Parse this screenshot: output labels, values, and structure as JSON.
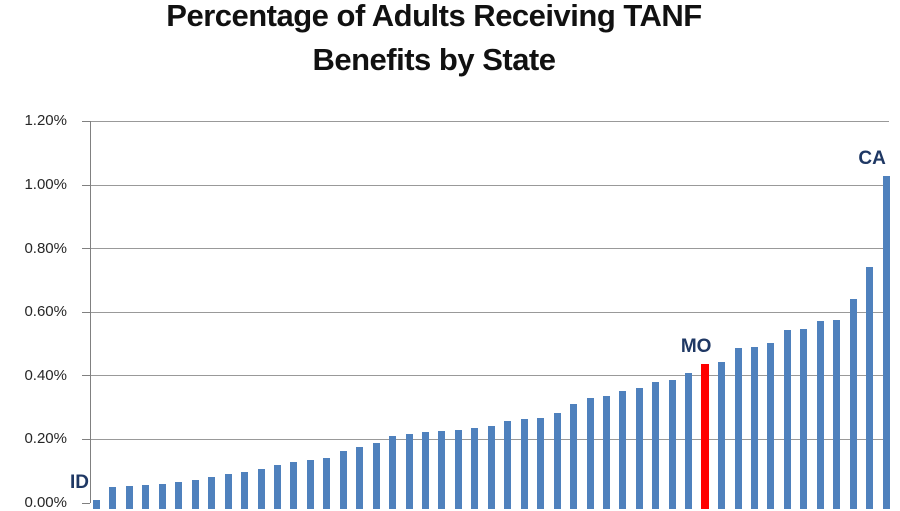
{
  "title": {
    "line1": "Percentage of Adults Receiving TANF",
    "line2": "Benefits by State"
  },
  "chart_data": {
    "type": "bar",
    "title": "Percentage of Adults Receiving TANF Benefits by State",
    "xlabel": "",
    "ylabel": "",
    "unit": "percent of adults",
    "ylim_percent": [
      0.0,
      1.2
    ],
    "y_tick_labels": [
      "0.00%",
      "0.20%",
      "0.40%",
      "0.60%",
      "0.80%",
      "1.00%",
      "1.20%"
    ],
    "grid": true,
    "legend": false,
    "values_percent": [
      0.01,
      0.05,
      0.055,
      0.057,
      0.06,
      0.065,
      0.072,
      0.082,
      0.09,
      0.098,
      0.108,
      0.118,
      0.128,
      0.135,
      0.14,
      0.165,
      0.175,
      0.188,
      0.21,
      0.217,
      0.224,
      0.226,
      0.23,
      0.235,
      0.241,
      0.258,
      0.263,
      0.266,
      0.282,
      0.31,
      0.33,
      0.337,
      0.352,
      0.362,
      0.38,
      0.386,
      0.409,
      0.436,
      0.443,
      0.487,
      0.49,
      0.503,
      0.545,
      0.548,
      0.571,
      0.575,
      0.643,
      0.741,
      1.027
    ],
    "point_labels": [
      {
        "index": 0,
        "label": "ID"
      },
      {
        "index": 37,
        "label": "MO"
      },
      {
        "index": 48,
        "label": "CA"
      }
    ],
    "highlighted_bar": {
      "index": 37,
      "label": "MO",
      "color": "#FF0000"
    }
  },
  "colors": {
    "background": "#FFFFFF",
    "bar": "#4F81BD",
    "highlight": "#FF0000",
    "gridline": "#999999",
    "axis": "#808080",
    "axis_text": "#262626",
    "point_label_text": "#1F3864",
    "title_text": "#111111"
  }
}
